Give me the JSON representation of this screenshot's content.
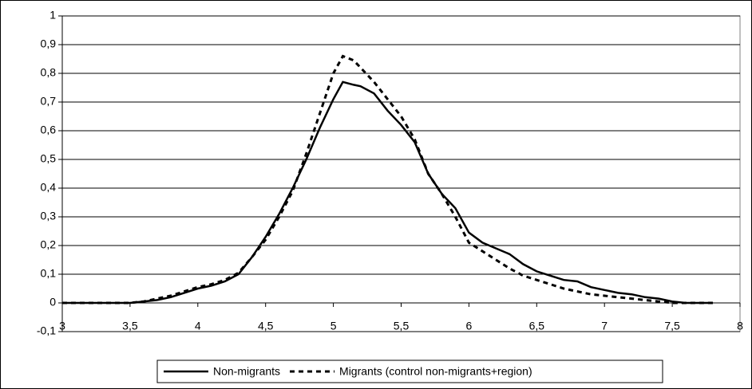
{
  "chart_data": {
    "type": "line",
    "x": [
      3,
      3.5,
      3.6,
      3.7,
      3.8,
      3.9,
      4,
      4.1,
      4.2,
      4.3,
      4.4,
      4.5,
      4.6,
      4.7,
      4.8,
      4.9,
      5,
      5.07,
      5.15,
      5.2,
      5.3,
      5.4,
      5.5,
      5.6,
      5.7,
      5.8,
      5.9,
      6,
      6.1,
      6.2,
      6.3,
      6.4,
      6.5,
      6.6,
      6.7,
      6.8,
      6.9,
      7,
      7.1,
      7.2,
      7.3,
      7.4,
      7.5,
      7.6,
      7.8
    ],
    "series": [
      {
        "name": "Non-migrants",
        "color": "#000000",
        "style": "solid",
        "values": [
          0,
          0,
          0.005,
          0.01,
          0.02,
          0.035,
          0.05,
          0.06,
          0.075,
          0.1,
          0.16,
          0.23,
          0.31,
          0.4,
          0.5,
          0.61,
          0.71,
          0.77,
          0.76,
          0.755,
          0.73,
          0.67,
          0.62,
          0.56,
          0.45,
          0.38,
          0.33,
          0.245,
          0.21,
          0.19,
          0.17,
          0.135,
          0.11,
          0.095,
          0.08,
          0.075,
          0.055,
          0.045,
          0.035,
          0.03,
          0.02,
          0.015,
          0.005,
          0,
          0
        ]
      },
      {
        "name": "Migrants (control non-migrants+region)",
        "color": "#000000",
        "style": "dashed",
        "values": [
          0,
          0,
          0.005,
          0.015,
          0.025,
          0.04,
          0.055,
          0.065,
          0.08,
          0.105,
          0.16,
          0.22,
          0.3,
          0.39,
          0.52,
          0.66,
          0.8,
          0.86,
          0.845,
          0.82,
          0.77,
          0.71,
          0.65,
          0.57,
          0.45,
          0.38,
          0.3,
          0.21,
          0.18,
          0.15,
          0.12,
          0.095,
          0.08,
          0.065,
          0.05,
          0.04,
          0.03,
          0.025,
          0.02,
          0.015,
          0.01,
          0.005,
          0,
          0,
          0
        ]
      }
    ],
    "xlim": [
      3,
      8
    ],
    "xticks": [
      3,
      {
        "value": 3.5,
        "label": "3,5"
      },
      4,
      {
        "value": 4.5,
        "label": "4,5"
      },
      5,
      {
        "value": 5.5,
        "label": "5,5"
      },
      6,
      {
        "value": 6.5,
        "label": "6,5"
      },
      7,
      {
        "value": 7.5,
        "label": "7,5"
      },
      8
    ],
    "ylim": [
      -0.1,
      1
    ],
    "yticks": [
      {
        "value": -0.1,
        "label": "-0,1"
      },
      0,
      {
        "value": 0.1,
        "label": "0,1"
      },
      {
        "value": 0.2,
        "label": "0,2"
      },
      {
        "value": 0.3,
        "label": "0,3"
      },
      {
        "value": 0.4,
        "label": "0,4"
      },
      {
        "value": 0.5,
        "label": "0,5"
      },
      {
        "value": 0.6,
        "label": "0,6"
      },
      {
        "value": 0.7,
        "label": "0,7"
      },
      {
        "value": 0.8,
        "label": "0,8"
      },
      {
        "value": 0.9,
        "label": "0,9"
      },
      1
    ],
    "grid": true,
    "legend": "bottom"
  }
}
